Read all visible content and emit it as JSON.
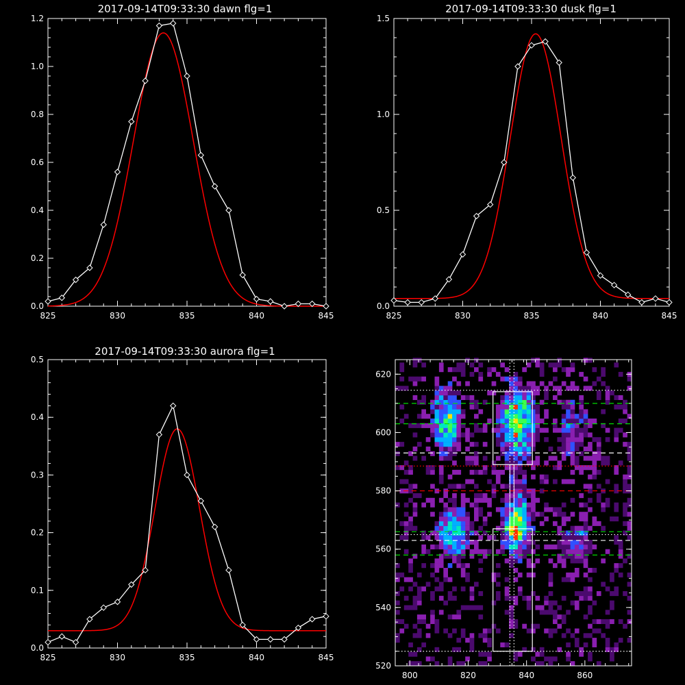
{
  "chart_data": [
    {
      "type": "line",
      "title": "2017-09-14T09:33:30 dawn flg=1",
      "xlabel": "",
      "ylabel": "",
      "xlim": [
        825,
        845
      ],
      "ylim": [
        0,
        1.2
      ],
      "xticks": [
        825,
        830,
        835,
        840,
        845
      ],
      "yticks": [
        0.0,
        0.2,
        0.4,
        0.6,
        0.8,
        1.0,
        1.2
      ],
      "ytick_labels": [
        "0.0",
        "0.2",
        "0.4",
        "0.6",
        "0.8",
        "1.0",
        "1.2"
      ],
      "grid": false,
      "series": [
        {
          "kind": "measured",
          "color": "#ffffff",
          "marker": "diamond",
          "x": [
            825,
            826,
            827,
            828,
            829,
            830,
            831,
            832,
            833,
            834,
            835,
            836,
            837,
            838,
            839,
            840,
            841,
            842,
            843,
            844,
            845
          ],
          "y": [
            0.02,
            0.035,
            0.11,
            0.16,
            0.34,
            0.56,
            0.77,
            0.94,
            1.17,
            1.18,
            0.96,
            0.63,
            0.5,
            0.4,
            0.13,
            0.03,
            0.02,
            0.0,
            0.01,
            0.01,
            0.0
          ]
        },
        {
          "kind": "fit",
          "color": "#ff0000",
          "shape": "gaussian",
          "amplitude": 1.14,
          "center": 833.3,
          "sigma": 2.15,
          "offset": 0.0
        }
      ]
    },
    {
      "type": "line",
      "title": "2017-09-14T09:33:30 dusk flg=1",
      "xlabel": "",
      "ylabel": "",
      "xlim": [
        825,
        845
      ],
      "ylim": [
        0,
        1.5
      ],
      "xticks": [
        825,
        830,
        835,
        840,
        845
      ],
      "yticks": [
        0.0,
        0.5,
        1.0,
        1.5
      ],
      "ytick_labels": [
        "0.0",
        "0.5",
        "1.0",
        "1.5"
      ],
      "grid": false,
      "series": [
        {
          "kind": "measured",
          "color": "#ffffff",
          "marker": "diamond",
          "x": [
            825,
            826,
            827,
            828,
            829,
            830,
            831,
            832,
            833,
            834,
            835,
            836,
            837,
            838,
            839,
            840,
            841,
            842,
            843,
            844,
            845
          ],
          "y": [
            0.03,
            0.02,
            0.02,
            0.04,
            0.14,
            0.27,
            0.47,
            0.53,
            0.75,
            1.25,
            1.36,
            1.38,
            1.27,
            0.67,
            0.28,
            0.16,
            0.11,
            0.06,
            0.02,
            0.04,
            0.02
          ]
        },
        {
          "kind": "fit",
          "color": "#ff0000",
          "shape": "gaussian",
          "amplitude": 1.38,
          "center": 835.3,
          "sigma": 1.85,
          "offset": 0.04
        }
      ]
    },
    {
      "type": "line",
      "title": "2017-09-14T09:33:30 aurora flg=1",
      "xlabel": "",
      "ylabel": "",
      "xlim": [
        825,
        845
      ],
      "ylim": [
        0,
        0.5
      ],
      "xticks": [
        825,
        830,
        835,
        840,
        845
      ],
      "yticks": [
        0.0,
        0.1,
        0.2,
        0.3,
        0.4,
        0.5
      ],
      "ytick_labels": [
        "0.0",
        "0.1",
        "0.2",
        "0.3",
        "0.4",
        "0.5"
      ],
      "grid": false,
      "series": [
        {
          "kind": "measured",
          "color": "#ffffff",
          "marker": "diamond",
          "x": [
            825,
            826,
            827,
            828,
            829,
            830,
            831,
            832,
            833,
            834,
            835,
            836,
            837,
            838,
            839,
            840,
            841,
            842,
            843,
            844,
            845
          ],
          "y": [
            0.01,
            0.02,
            0.01,
            0.05,
            0.07,
            0.08,
            0.11,
            0.135,
            0.37,
            0.42,
            0.3,
            0.255,
            0.21,
            0.135,
            0.04,
            0.015,
            0.015,
            0.015,
            0.035,
            0.05,
            0.055
          ]
        },
        {
          "kind": "fit",
          "color": "#ff0000",
          "shape": "gaussian",
          "amplitude": 0.35,
          "center": 834.3,
          "sigma": 1.6,
          "offset": 0.03
        }
      ]
    },
    {
      "type": "heatmap",
      "title": "",
      "xlabel": "",
      "ylabel": "",
      "xlim": [
        795,
        876
      ],
      "ylim": [
        520,
        625
      ],
      "xticks": [
        800,
        820,
        840,
        860
      ],
      "yticks": [
        520,
        540,
        560,
        580,
        600,
        620
      ],
      "grid": false,
      "colormap": [
        "#000000",
        "#4b0a6e",
        "#8a1fb0",
        "#3050ff",
        "#00b0ff",
        "#00e8c0",
        "#3cff50",
        "#ffe000",
        "#ff3000"
      ],
      "blobs": [
        {
          "x": 812,
          "y": 603,
          "sx": 3.2,
          "sy": 7,
          "peak": 0.55
        },
        {
          "x": 814,
          "y": 565,
          "sx": 3.5,
          "sy": 6,
          "peak": 0.5
        },
        {
          "x": 836,
          "y": 603,
          "sx": 4,
          "sy": 8,
          "peak": 0.62
        },
        {
          "x": 836,
          "y": 568,
          "sx": 3.2,
          "sy": 8,
          "peak": 0.55
        },
        {
          "x": 835.5,
          "y": 564,
          "sx": 1.6,
          "sy": 2,
          "peak": 0.45
        },
        {
          "x": 855,
          "y": 600,
          "sx": 4,
          "sy": 8,
          "peak": 0.22
        },
        {
          "x": 856,
          "y": 562,
          "sx": 4,
          "sy": 5,
          "peak": 0.25
        }
      ],
      "boxes": [
        {
          "color": "#ffffff",
          "x": [
            828.5,
            842
          ],
          "y": [
            589,
            614
          ]
        },
        {
          "color": "#ffffff",
          "x": [
            828.5,
            842
          ],
          "y": [
            525,
            567
          ]
        }
      ],
      "vlines": [
        {
          "x": 834.3,
          "color": "#ffffff",
          "style": "dotted"
        },
        {
          "x": 835.7,
          "color": "#ffffff",
          "style": "dotted"
        }
      ],
      "hlines": [
        {
          "y": 614.5,
          "color": "#ffffff",
          "style": "dotted"
        },
        {
          "y": 610,
          "color": "#00dd00",
          "style": "dashed"
        },
        {
          "y": 603,
          "color": "#00dd00",
          "style": "dashed"
        },
        {
          "y": 593,
          "color": "#ffffff",
          "style": "dashed"
        },
        {
          "y": 588.5,
          "color": "#ff0000",
          "style": "dotted"
        },
        {
          "y": 580,
          "color": "#ff0000",
          "style": "dashed"
        },
        {
          "y": 566,
          "color": "#00dd00",
          "style": "dashed"
        },
        {
          "y": 565,
          "color": "#ffffff",
          "style": "dotted"
        },
        {
          "y": 563,
          "color": "#ffffff",
          "style": "dashed"
        },
        {
          "y": 558,
          "color": "#00dd00",
          "style": "dashed"
        },
        {
          "y": 525,
          "color": "#ffffff",
          "style": "dotted"
        }
      ]
    }
  ]
}
